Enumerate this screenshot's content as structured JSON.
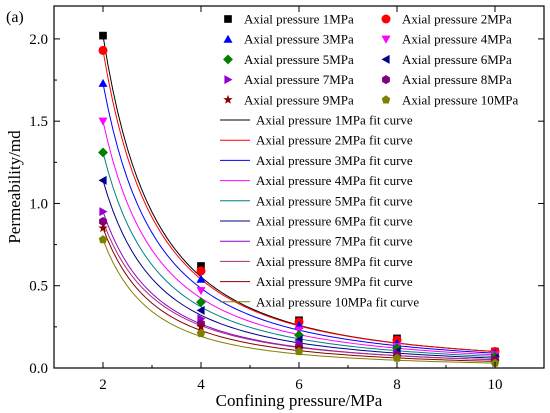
{
  "chart_data": {
    "type": "scatter",
    "panel_label": "(a)",
    "xlabel": "Confining pressure/MPa",
    "ylabel": "Permeability/md",
    "xlim": [
      1,
      11
    ],
    "ylim": [
      0,
      2.2
    ],
    "xticks": [
      2,
      4,
      6,
      8,
      10
    ],
    "yticks": [
      0.0,
      0.5,
      1.0,
      1.5,
      2.0
    ],
    "xtick_labels": [
      "2",
      "4",
      "6",
      "8",
      "10"
    ],
    "ytick_labels": [
      "0.0",
      "0.5",
      "1.0",
      "1.5",
      "2.0"
    ],
    "x": [
      2,
      4,
      6,
      8,
      10
    ],
    "grid": false,
    "legend_placement": "top-right",
    "series": [
      {
        "name": "Axial pressure 1MPa",
        "fit_name": "Axial pressure 1MPa fit curve",
        "marker": "square",
        "marker_color": "#000000",
        "fit_color": "#000000",
        "values": [
          2.02,
          0.62,
          0.29,
          0.18,
          0.1
        ]
      },
      {
        "name": "Axial pressure 2MPa",
        "fit_name": "Axial pressure 2MPa fit curve",
        "marker": "circle",
        "marker_color": "#ff0000",
        "fit_color": "#ff0000",
        "values": [
          1.93,
          0.59,
          0.28,
          0.17,
          0.1
        ]
      },
      {
        "name": "Axial pressure 3MPa",
        "fit_name": "Axial pressure 3MPa fit curve",
        "marker": "triangle-up",
        "marker_color": "#0000ff",
        "fit_color": "#0000ff",
        "values": [
          1.73,
          0.54,
          0.26,
          0.15,
          0.09
        ]
      },
      {
        "name": "Axial pressure 4MPa",
        "fit_name": "Axial pressure 4MPa fit curve",
        "marker": "triangle-down",
        "marker_color": "#ff00ff",
        "fit_color": "#ff00ff",
        "values": [
          1.5,
          0.47,
          0.23,
          0.13,
          0.08
        ]
      },
      {
        "name": "Axial pressure 5MPa",
        "fit_name": "Axial pressure 5MPa fit curve",
        "marker": "diamond",
        "marker_color": "#008000",
        "fit_color": "#008080",
        "values": [
          1.31,
          0.4,
          0.2,
          0.12,
          0.07
        ]
      },
      {
        "name": "Axial pressure 6MPa",
        "fit_name": "Axial pressure 6MPa fit curve",
        "marker": "triangle-left",
        "marker_color": "#00008b",
        "fit_color": "#00008b",
        "values": [
          1.14,
          0.35,
          0.17,
          0.1,
          0.06
        ]
      },
      {
        "name": "Axial pressure 7MPa",
        "fit_name": "Axial pressure 7MPa fit curve",
        "marker": "triangle-right",
        "marker_color": "#9400d3",
        "fit_color": "#9400d3",
        "values": [
          0.95,
          0.3,
          0.15,
          0.09,
          0.05
        ]
      },
      {
        "name": "Axial pressure 8MPa",
        "fit_name": "Axial pressure 8MPa fit curve",
        "marker": "hexagon",
        "marker_color": "#800080",
        "fit_color": "#a0307a",
        "values": [
          0.89,
          0.27,
          0.13,
          0.08,
          0.05
        ]
      },
      {
        "name": "Axial pressure 9MPa",
        "fit_name": "Axial pressure 9MPa fit curve",
        "marker": "star",
        "marker_color": "#8b0000",
        "fit_color": "#8b0000",
        "values": [
          0.85,
          0.25,
          0.12,
          0.07,
          0.04
        ]
      },
      {
        "name": "Axial pressure 10MPa",
        "fit_name": "Axial pressure 10MPa fit curve",
        "marker": "pentagon",
        "marker_color": "#808000",
        "fit_color": "#808000",
        "values": [
          0.78,
          0.21,
          0.1,
          0.06,
          0.03
        ]
      }
    ]
  }
}
